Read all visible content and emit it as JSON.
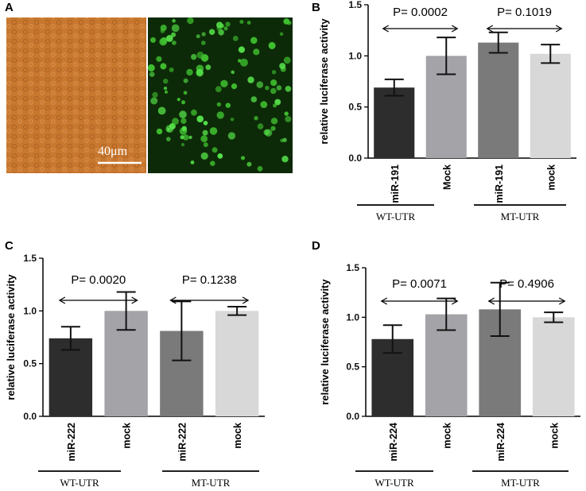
{
  "panel_a": {
    "letter": "A",
    "scale_bar_label": "40μm",
    "brightfield_color": "#c9782f",
    "fluorescence_color": "#2f8f1f"
  },
  "chart_data": [
    {
      "type": "bar",
      "letter": "B",
      "ylabel": "relative luciferase activity",
      "ylim": [
        0,
        1.5
      ],
      "yticks": [
        "0.0",
        "0.5",
        "1.0",
        "1.5"
      ],
      "categories": [
        "miR-191",
        "Mock",
        "miR-191",
        "mock"
      ],
      "values": [
        0.69,
        1.0,
        1.13,
        1.02
      ],
      "errors": [
        0.08,
        0.18,
        0.1,
        0.09
      ],
      "colors": [
        "#2d2d2d",
        "#a3a3a8",
        "#7a7a7a",
        "#d8d8d8"
      ],
      "groups": [
        "WT-UTR",
        "MT-UTR"
      ],
      "pvalues": [
        "P= 0.0002",
        "P= 0.1019"
      ]
    },
    {
      "type": "bar",
      "letter": "C",
      "ylabel": "relative luciferase activity",
      "ylim": [
        0,
        1.5
      ],
      "yticks": [
        "0.0",
        "0.5",
        "1.0",
        "1.5"
      ],
      "categories": [
        "miR-222",
        "mock",
        "miR-222",
        "mock"
      ],
      "values": [
        0.74,
        1.0,
        0.81,
        1.0
      ],
      "errors": [
        0.11,
        0.18,
        0.28,
        0.04
      ],
      "colors": [
        "#2d2d2d",
        "#a3a3a8",
        "#7a7a7a",
        "#d8d8d8"
      ],
      "groups": [
        "WT-UTR",
        "MT-UTR"
      ],
      "pvalues": [
        "P= 0.0020",
        "P= 0.1238"
      ]
    },
    {
      "type": "bar",
      "letter": "D",
      "ylabel": "relative luciferase activity",
      "ylim": [
        0,
        1.5
      ],
      "yticks": [
        "0.0",
        "0.5",
        "1.0",
        "1.5"
      ],
      "categories": [
        "miR-224",
        "mock",
        "miR-224",
        "mock"
      ],
      "values": [
        0.78,
        1.03,
        1.08,
        1.0
      ],
      "errors": [
        0.14,
        0.16,
        0.27,
        0.05
      ],
      "colors": [
        "#2d2d2d",
        "#a3a3a8",
        "#7a7a7a",
        "#d8d8d8"
      ],
      "groups": [
        "WT-UTR",
        "MT-UTR"
      ],
      "pvalues": [
        "P= 0.0071",
        "P= 0.4906"
      ]
    }
  ]
}
